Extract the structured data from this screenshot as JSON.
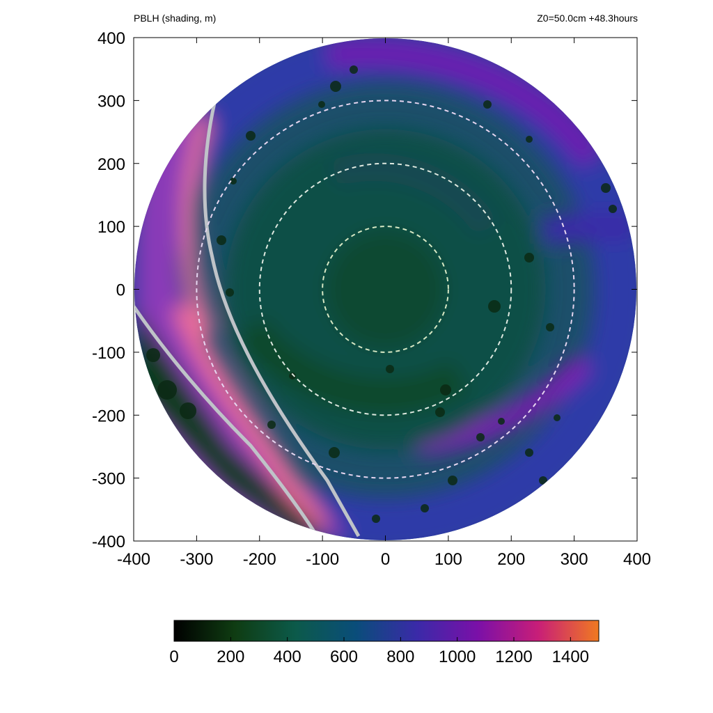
{
  "header": {
    "left": "PBLH (shading, m)",
    "right": "Z0=50.0cm  +48.3hours"
  },
  "chart_data": {
    "type": "heatmap",
    "title": "PBLH (shading, m)",
    "annotation": "Z0=50.0cm  +48.3hours",
    "xlabel": "",
    "ylabel": "",
    "xlim": [
      -400,
      400
    ],
    "ylim": [
      -400,
      400
    ],
    "xticks": [
      -400,
      -300,
      -200,
      -100,
      0,
      100,
      200,
      300,
      400
    ],
    "yticks": [
      400,
      300,
      200,
      100,
      0,
      -100,
      -200,
      -300,
      -400
    ],
    "domain_radius": 400,
    "rings": [
      {
        "radius": 100,
        "color": "#d7e8c4"
      },
      {
        "radius": 200,
        "color": "#dfe9e0"
      },
      {
        "radius": 300,
        "color": "#e6d6f0"
      }
    ],
    "colorbar": {
      "min": 0,
      "max": 1500,
      "ticks": [
        0,
        200,
        400,
        600,
        800,
        1000,
        1200,
        1400
      ],
      "colors": [
        "#000000",
        "#0f3c12",
        "#0c5a4a",
        "#0a4d7a",
        "#3a2aa8",
        "#7a10a8",
        "#c81e78",
        "#f07a20"
      ]
    },
    "grid": false,
    "legend": "colorbar-bottom"
  }
}
